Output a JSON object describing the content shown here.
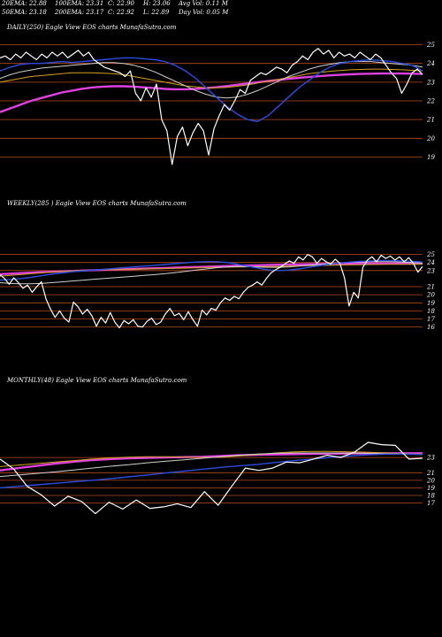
{
  "header": {
    "row1": [
      "20EMA: 22.88",
      "100EMA: 23.31",
      "C: 22.90",
      "H: 23.06",
      "Avg Vol: 0.11 M"
    ],
    "row2": [
      "50EMA: 23.18",
      "200EMA: 23.17",
      "C: 22.92",
      "L: 22.89",
      "Day Vol: 0.05 M"
    ]
  },
  "panels": {
    "daily_label": "DAILY(250) Eagle  View  EOS charts MunafaSutra.com",
    "weekly_label": "WEEKLY(285                    ) Eagle  View  EOS charts MunafaSutra.com",
    "monthly_label": "MONTHLY(48) Eagle  View  EOS charts MunafaSutra.com"
  },
  "colors": {
    "background": "#000000",
    "price": "#ffffff",
    "grid": "#b84a1e",
    "ema20": "#2b4de0",
    "ema50": "#d0d0d0",
    "ema100": "#d4a020",
    "ema200": "#e040e0"
  },
  "chart_data": [
    {
      "type": "line",
      "panel": "daily",
      "ticks": [
        25,
        24,
        23,
        22,
        21,
        20,
        19
      ],
      "ylim": [
        18.5,
        25.5
      ],
      "series": [
        {
          "key": "price",
          "values": [
            24.3,
            24.4,
            24.2,
            24.5,
            24.3,
            24.6,
            24.4,
            24.2,
            24.5,
            24.3,
            24.6,
            24.4,
            24.6,
            24.3,
            24.5,
            24.7,
            24.4,
            24.6,
            24.2,
            24.0,
            23.8,
            23.7,
            23.6,
            23.5,
            23.3,
            23.6,
            22.4,
            22.0,
            22.7,
            22.2,
            22.9,
            21.0,
            20.4,
            18.6,
            20.1,
            20.6,
            19.6,
            20.3,
            20.8,
            20.4,
            19.1,
            20.5,
            21.2,
            21.8,
            21.5,
            22.0,
            22.6,
            22.4,
            23.1,
            23.3,
            23.5,
            23.4,
            23.6,
            23.8,
            23.7,
            23.5,
            23.9,
            24.1,
            24.4,
            24.2,
            24.6,
            24.8,
            24.5,
            24.7,
            24.3,
            24.6,
            24.4,
            24.5,
            24.3,
            24.6,
            24.4,
            24.2,
            24.5,
            24.3,
            23.9,
            23.5,
            23.2,
            22.4,
            22.9,
            23.5,
            23.7,
            23.4
          ]
        },
        {
          "key": "ema20",
          "values": [
            23.6,
            23.8,
            23.95,
            24.0,
            24.0,
            24.05,
            24.1,
            24.05,
            24.1,
            24.15,
            24.2,
            24.25,
            24.3,
            24.3,
            24.25,
            24.2,
            24.1,
            23.9,
            23.6,
            23.2,
            22.7,
            22.2,
            21.7,
            21.3,
            21.0,
            20.9,
            21.2,
            21.7,
            22.2,
            22.7,
            23.1,
            23.5,
            23.8,
            24.0,
            24.1,
            24.15,
            24.2,
            24.15,
            24.1,
            24.0,
            23.9,
            23.6
          ]
        },
        {
          "key": "ema50",
          "values": [
            23.2,
            23.4,
            23.55,
            23.65,
            23.75,
            23.8,
            23.85,
            23.9,
            23.95,
            24.0,
            24.05,
            24.05,
            24.0,
            23.9,
            23.75,
            23.55,
            23.3,
            23.05,
            22.8,
            22.55,
            22.35,
            22.2,
            22.15,
            22.2,
            22.35,
            22.55,
            22.8,
            23.05,
            23.3,
            23.5,
            23.7,
            23.85,
            23.95,
            24.05,
            24.1,
            24.1,
            24.1,
            24.05,
            24.0,
            23.95,
            23.9,
            23.8
          ]
        },
        {
          "key": "ema100",
          "values": [
            23.0,
            23.1,
            23.2,
            23.3,
            23.35,
            23.4,
            23.45,
            23.5,
            23.5,
            23.5,
            23.48,
            23.45,
            23.4,
            23.3,
            23.2,
            23.1,
            23.0,
            22.9,
            22.8,
            22.75,
            22.7,
            22.7,
            22.72,
            22.78,
            22.85,
            22.95,
            23.05,
            23.15,
            23.25,
            23.35,
            23.45,
            23.52,
            23.58,
            23.62,
            23.66,
            23.68,
            23.7,
            23.7,
            23.68,
            23.66,
            23.63,
            23.6
          ]
        },
        {
          "key": "ema200",
          "values": [
            21.4,
            21.6,
            21.8,
            22.0,
            22.15,
            22.3,
            22.45,
            22.55,
            22.65,
            22.72,
            22.76,
            22.78,
            22.78,
            22.76,
            22.72,
            22.68,
            22.64,
            22.62,
            22.62,
            22.64,
            22.68,
            22.73,
            22.79,
            22.86,
            22.93,
            23.0,
            23.06,
            23.12,
            23.18,
            23.23,
            23.28,
            23.32,
            23.36,
            23.39,
            23.42,
            23.44,
            23.45,
            23.46,
            23.46,
            23.46,
            23.45,
            23.44
          ]
        }
      ]
    },
    {
      "type": "line",
      "panel": "weekly",
      "ticks": [
        25,
        24,
        23,
        21,
        20,
        19,
        18,
        17,
        16
      ],
      "ylim": [
        15.3,
        25.5
      ],
      "series": [
        {
          "key": "price",
          "values": [
            22.5,
            22.0,
            21.3,
            22.1,
            21.5,
            20.8,
            21.2,
            20.3,
            21.0,
            21.6,
            19.5,
            18.2,
            17.2,
            18.0,
            17.1,
            16.6,
            19.1,
            18.5,
            17.6,
            18.2,
            17.4,
            16.1,
            17.2,
            16.5,
            17.8,
            16.6,
            15.9,
            16.8,
            16.4,
            16.9,
            16.1,
            16.0,
            16.7,
            17.1,
            16.3,
            16.6,
            17.6,
            18.3,
            17.4,
            17.7,
            16.9,
            17.9,
            16.9,
            16.1,
            18.1,
            17.5,
            18.3,
            18.1,
            19.0,
            19.6,
            19.3,
            19.8,
            19.5,
            20.3,
            20.9,
            21.2,
            21.6,
            21.2,
            22.0,
            22.7,
            23.1,
            23.4,
            23.8,
            24.2,
            23.9,
            24.7,
            24.3,
            25.0,
            24.7,
            23.9,
            24.5,
            24.1,
            23.8,
            24.4,
            23.9,
            22.1,
            18.6,
            20.3,
            19.6,
            23.4,
            24.3,
            24.7,
            24.1,
            24.9,
            24.5,
            24.8,
            24.3,
            24.7,
            24.1,
            24.6,
            23.9,
            22.8,
            23.5
          ]
        },
        {
          "key": "ema20",
          "values": [
            21.8,
            21.9,
            22.0,
            22.15,
            22.35,
            22.55,
            22.7,
            22.85,
            22.95,
            23.05,
            23.15,
            23.25,
            23.35,
            23.45,
            23.55,
            23.65,
            23.75,
            23.85,
            23.95,
            24.05,
            24.1,
            24.1,
            24.0,
            23.8,
            23.55,
            23.3,
            23.1,
            23.0,
            23.05,
            23.2,
            23.4,
            23.6,
            23.8,
            23.95,
            24.05,
            24.15,
            24.2,
            24.25,
            24.25,
            24.2,
            24.15,
            24.05
          ]
        },
        {
          "key": "ema50",
          "values": [
            21.5,
            21.4,
            21.35,
            21.35,
            21.4,
            21.5,
            21.6,
            21.7,
            21.8,
            21.9,
            22.0,
            22.1,
            22.2,
            22.3,
            22.4,
            22.5,
            22.6,
            22.75,
            22.9,
            23.05,
            23.2,
            23.35,
            23.45,
            23.5,
            23.5,
            23.45,
            23.4,
            23.4,
            23.45,
            23.55,
            23.65,
            23.75,
            23.85,
            23.95,
            24.0,
            24.05,
            24.1,
            24.1,
            24.1,
            24.05,
            24.0,
            23.95
          ]
        },
        {
          "key": "ema100",
          "values": [
            22.3,
            22.4,
            22.5,
            22.6,
            22.7,
            22.8,
            22.88,
            22.95,
            23.0,
            23.05,
            23.1,
            23.12,
            23.15,
            23.18,
            23.2,
            23.22,
            23.25,
            23.28,
            23.3,
            23.33,
            23.36,
            23.4,
            23.42,
            23.44,
            23.46,
            23.48,
            23.5,
            23.52,
            23.55,
            23.58,
            23.6,
            23.62,
            23.65,
            23.68,
            23.7,
            23.72,
            23.74,
            23.76,
            23.77,
            23.78,
            23.79,
            23.8
          ]
        },
        {
          "key": "ema200",
          "values": [
            22.55,
            22.62,
            22.68,
            22.74,
            22.8,
            22.85,
            22.9,
            22.95,
            23.0,
            23.04,
            23.08,
            23.12,
            23.16,
            23.2,
            23.24,
            23.28,
            23.32,
            23.36,
            23.4,
            23.44,
            23.48,
            23.52,
            23.56,
            23.6,
            23.63,
            23.66,
            23.69,
            23.72,
            23.75,
            23.77,
            23.79,
            23.81,
            23.83,
            23.85,
            23.86,
            23.87,
            23.88,
            23.88,
            23.88,
            23.87,
            23.86,
            23.85
          ]
        }
      ]
    },
    {
      "type": "line",
      "panel": "monthly",
      "ticks": [
        23,
        21,
        20,
        19,
        18,
        17
      ],
      "ylim": [
        14.5,
        25.0
      ],
      "series": [
        {
          "key": "price",
          "values": [
            22.8,
            21.5,
            19.2,
            18.1,
            16.6,
            17.9,
            17.2,
            15.6,
            17.1,
            16.2,
            17.4,
            16.3,
            16.5,
            16.9,
            16.4,
            18.5,
            16.7,
            19.2,
            21.6,
            21.3,
            21.6,
            22.4,
            22.3,
            22.8,
            23.3,
            23.0,
            23.7,
            25.0,
            24.7,
            24.6,
            22.8,
            22.9
          ]
        },
        {
          "key": "ema20",
          "values": [
            19.0,
            19.2,
            19.4,
            19.6,
            19.8,
            20.0,
            20.2,
            20.45,
            20.7,
            20.95,
            21.2,
            21.45,
            21.7,
            21.9,
            22.1,
            22.35,
            22.6,
            22.8,
            23.0,
            23.2,
            23.35,
            23.45,
            23.45,
            23.4
          ]
        },
        {
          "key": "ema50",
          "values": [
            20.5,
            20.7,
            20.9,
            21.1,
            21.35,
            21.6,
            21.85,
            22.05,
            22.3,
            22.5,
            22.7,
            22.9,
            23.1,
            23.3,
            23.45,
            23.55,
            23.6,
            23.6,
            23.6,
            23.58,
            23.55,
            23.5,
            23.45,
            23.4
          ]
        },
        {
          "key": "ema100",
          "values": [
            21.8,
            22.0,
            22.2,
            22.4,
            22.6,
            22.8,
            22.95,
            23.05,
            23.1,
            23.1,
            23.05,
            23.0,
            23.05,
            23.2,
            23.4,
            23.6,
            23.75,
            23.8,
            23.8,
            23.75,
            23.7,
            23.6,
            23.5,
            23.45
          ]
        },
        {
          "key": "ema200",
          "values": [
            21.3,
            21.6,
            21.9,
            22.2,
            22.45,
            22.65,
            22.8,
            22.9,
            22.95,
            23.0,
            23.05,
            23.1,
            23.2,
            23.3,
            23.35,
            23.4,
            23.45,
            23.5,
            23.52,
            23.54,
            23.55,
            23.56,
            23.57,
            23.57
          ]
        }
      ]
    }
  ]
}
